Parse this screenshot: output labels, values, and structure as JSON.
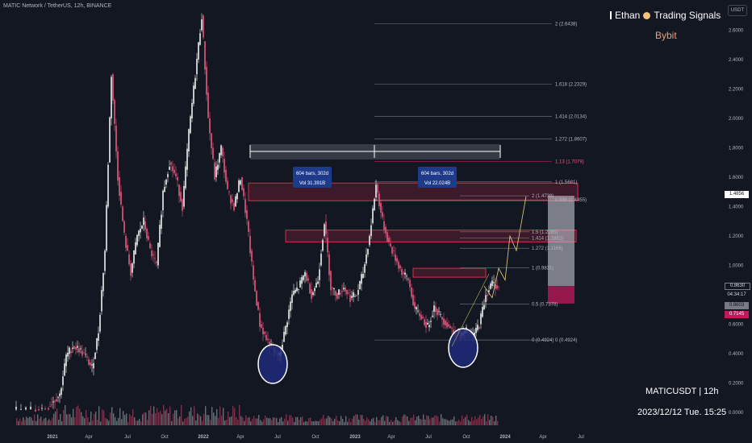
{
  "header": {
    "title": "MATIC Network / TetherUS, 12h, BINANCE"
  },
  "branding": {
    "left_bar": "▌",
    "name": "Ethan",
    "right": "Trading Signals",
    "exchange": "Bybit",
    "currency_button": "USDT"
  },
  "footer": {
    "symbol": "MATICUSDT | 12h",
    "datetime": "2023/12/12 Tue. 15:25"
  },
  "price_badges": {
    "current": "1.4856",
    "b1": "0.8630",
    "b2": "04:34:17",
    "b3": "0.8603",
    "b4": "0.7145"
  },
  "colors": {
    "background": "#131722",
    "candle_up": "#f0f0f0",
    "candle_down": "#e8577f",
    "zone": "#e0294a",
    "circle": "#1e2a7a",
    "fib_line": "#787b86"
  },
  "chart_data": {
    "type": "candlestick",
    "x_axis": [
      "2021",
      "Apr",
      "Jul",
      "Oct",
      "2022",
      "Apr",
      "Jul",
      "Oct",
      "2023",
      "Apr",
      "Jul",
      "Oct",
      "2024",
      "Apr",
      "Jul"
    ],
    "y_axis": [
      "2.6000",
      "2.4000",
      "2.2000",
      "2.0000",
      "1.8000",
      "1.6000",
      "1.4000",
      "1.2000",
      "1.0000",
      "0.8000",
      "0.6000",
      "0.4000",
      "0.2000",
      "0.0000"
    ],
    "ylim": [
      0,
      2.7
    ],
    "price_path": [
      [
        0,
        0.02
      ],
      [
        3,
        0.02
      ],
      [
        5,
        0.03
      ],
      [
        6,
        0.08
      ],
      [
        7,
        0.12
      ],
      [
        8,
        0.38
      ],
      [
        9,
        0.45
      ],
      [
        10,
        0.43
      ],
      [
        11,
        0.38
      ],
      [
        12,
        0.3
      ],
      [
        13,
        0.55
      ],
      [
        14,
        1.1
      ],
      [
        15,
        2.3
      ],
      [
        16,
        1.6
      ],
      [
        17,
        1.2
      ],
      [
        18,
        0.95
      ],
      [
        19,
        1.2
      ],
      [
        20,
        1.3
      ],
      [
        21,
        1.1
      ],
      [
        22,
        1.0
      ],
      [
        23,
        1.5
      ],
      [
        24,
        1.7
      ],
      [
        25,
        1.6
      ],
      [
        26,
        1.4
      ],
      [
        27,
        1.9
      ],
      [
        28,
        2.3
      ],
      [
        29,
        2.7
      ],
      [
        30,
        2.0
      ],
      [
        31,
        1.6
      ],
      [
        32,
        1.8
      ],
      [
        33,
        1.5
      ],
      [
        34,
        1.4
      ],
      [
        35,
        1.6
      ],
      [
        36,
        1.3
      ],
      [
        37,
        0.9
      ],
      [
        38,
        0.6
      ],
      [
        39,
        0.5
      ],
      [
        40,
        0.42
      ],
      [
        41,
        0.38
      ],
      [
        42,
        0.58
      ],
      [
        43,
        0.8
      ],
      [
        44,
        0.85
      ],
      [
        45,
        0.95
      ],
      [
        46,
        0.8
      ],
      [
        47,
        0.9
      ],
      [
        48,
        1.3
      ],
      [
        49,
        0.85
      ],
      [
        50,
        0.8
      ],
      [
        51,
        0.85
      ],
      [
        52,
        0.78
      ],
      [
        53,
        0.8
      ],
      [
        54,
        0.95
      ],
      [
        55,
        1.2
      ],
      [
        56,
        1.55
      ],
      [
        57,
        1.3
      ],
      [
        58,
        1.15
      ],
      [
        59,
        1.05
      ],
      [
        60,
        0.95
      ],
      [
        61,
        0.9
      ],
      [
        62,
        0.7
      ],
      [
        63,
        0.65
      ],
      [
        64,
        0.58
      ],
      [
        65,
        0.72
      ],
      [
        66,
        0.65
      ],
      [
        67,
        0.6
      ],
      [
        68,
        0.55
      ],
      [
        69,
        0.52
      ],
      [
        70,
        0.55
      ],
      [
        71,
        0.52
      ],
      [
        72,
        0.6
      ],
      [
        73,
        0.8
      ],
      [
        74,
        0.88
      ],
      [
        75,
        0.85
      ]
    ],
    "fib_left": [
      {
        "label": "2 (2.6438)",
        "value": 2.6438
      },
      {
        "label": "1.618 (2.2329)",
        "value": 2.2329
      },
      {
        "label": "1.414 (2.0134)",
        "value": 2.0134
      },
      {
        "label": "1.272 (1.8607)",
        "value": 1.8607
      },
      {
        "label": "1.13 (1.7079)",
        "value": 1.7079
      },
      {
        "label": "1 (1.5681)",
        "value": 1.5681
      },
      {
        "label": "0.886 (1.4455)",
        "value": 1.4455
      },
      {
        "label": "0 (0.4924)",
        "value": 0.4924
      }
    ],
    "fib_right": [
      {
        "label": "2 (1.4738)",
        "value": 1.4738
      },
      {
        "label": "1.5 (1.2285)",
        "value": 1.2285
      },
      {
        "label": "1.414 (1.1862)",
        "value": 1.1862
      },
      {
        "label": "1.272 (1.1166)",
        "value": 1.1166
      },
      {
        "label": "1 (0.9831)",
        "value": 0.9831
      },
      {
        "label": "0.5 (0.7378)",
        "value": 0.7378
      },
      {
        "label": "0 (0.4924)",
        "value": 0.4924
      }
    ],
    "zones": [
      {
        "low": 1.44,
        "high": 1.56
      },
      {
        "low": 1.16,
        "high": 1.24
      },
      {
        "low": 0.92,
        "high": 0.98
      }
    ],
    "measures": [
      {
        "label_1": "604 bars, 302d",
        "label_2": "Vol 31.391B"
      },
      {
        "label_1": "604 bars, 302d",
        "label_2": "Vol 22.024B"
      }
    ],
    "projection": {
      "top": 1.4738,
      "bottom": 0.74,
      "entry": 0.86
    }
  }
}
